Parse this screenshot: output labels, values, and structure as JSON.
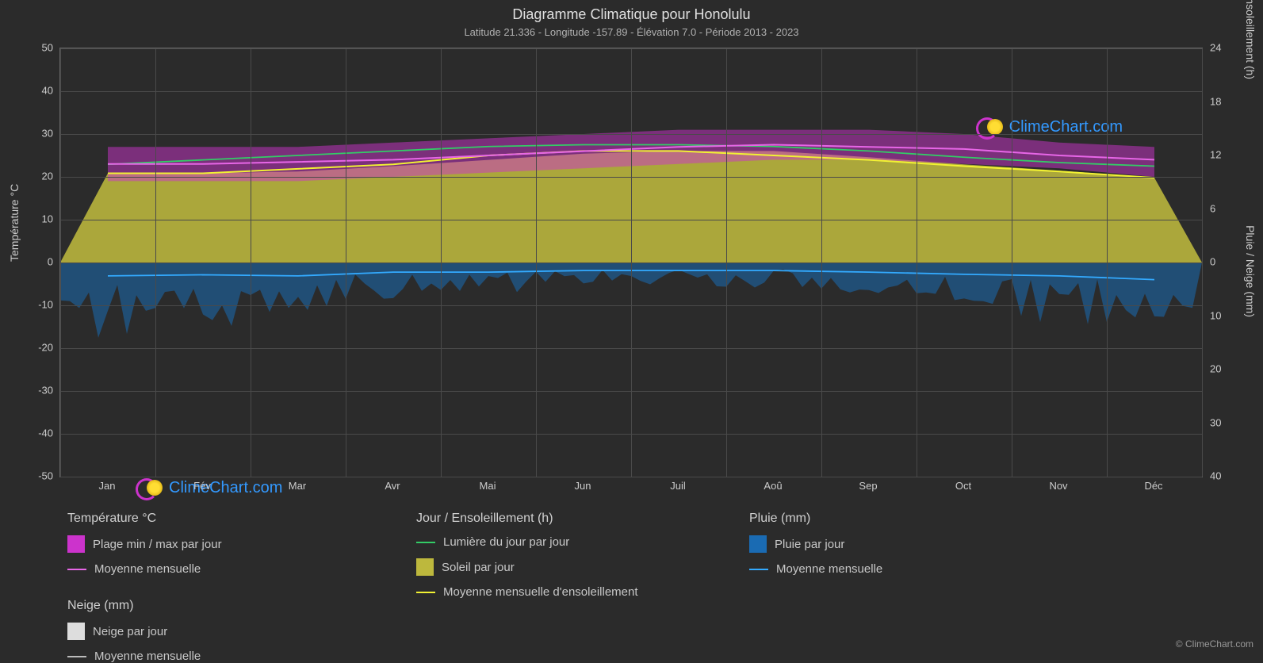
{
  "title": "Diagramme Climatique pour Honolulu",
  "subtitle": "Latitude 21.336 - Longitude -157.89 - Élévation 7.0 - Période 2013 - 2023",
  "copyright": "© ClimeChart.com",
  "watermark": "ClimeChart.com",
  "chart": {
    "type": "climate-composite",
    "background_color": "#2b2b2b",
    "grid_color": "#4a4a4a",
    "text_color": "#cccccc",
    "months": [
      "Jan",
      "Fév",
      "Mar",
      "Avr",
      "Mai",
      "Jun",
      "Juil",
      "Aoû",
      "Sep",
      "Oct",
      "Nov",
      "Déc"
    ],
    "y_left": {
      "label": "Température °C",
      "min": -50,
      "max": 50,
      "ticks": [
        50,
        40,
        30,
        20,
        10,
        0,
        -10,
        -20,
        -30,
        -40,
        -50
      ]
    },
    "y_right_top": {
      "label": "Jour / Ensoleillement (h)",
      "min": 0,
      "max": 24,
      "ticks": [
        24,
        18,
        12,
        6,
        0
      ]
    },
    "y_right_bottom": {
      "label": "Pluie / Neige (mm)",
      "min": 0,
      "max": 40,
      "ticks": [
        0,
        10,
        20,
        30,
        40
      ]
    },
    "temp_range_band": {
      "color": "#cc33cc",
      "opacity": 0.5,
      "monthly": [
        {
          "min": 19,
          "max": 27
        },
        {
          "min": 19,
          "max": 27
        },
        {
          "min": 19,
          "max": 27
        },
        {
          "min": 20,
          "max": 28
        },
        {
          "min": 21,
          "max": 29
        },
        {
          "min": 22,
          "max": 30
        },
        {
          "min": 23,
          "max": 31
        },
        {
          "min": 24,
          "max": 31
        },
        {
          "min": 24,
          "max": 31
        },
        {
          "min": 23,
          "max": 30
        },
        {
          "min": 22,
          "max": 28
        },
        {
          "min": 20,
          "max": 27
        }
      ]
    },
    "temp_mean_line": {
      "color": "#e766e7",
      "width": 2,
      "values": [
        23,
        23,
        23.5,
        24,
        25,
        26,
        27,
        27.5,
        27,
        26.5,
        25,
        24
      ]
    },
    "daylight_line": {
      "color": "#33cc66",
      "width": 1.8,
      "values_hours": [
        11,
        11.5,
        12,
        12.5,
        13,
        13.2,
        13.2,
        13,
        12.5,
        11.8,
        11.2,
        10.8
      ]
    },
    "sunshine_area": {
      "color": "#bdb83d",
      "opacity": 0.88,
      "values_hours": [
        10,
        10,
        10.2,
        10.8,
        11.5,
        12.2,
        12.5,
        12.5,
        11.8,
        11,
        10.3,
        9.5
      ]
    },
    "sunshine_mean_line": {
      "color": "#f2f233",
      "width": 2,
      "values_hours": [
        10,
        10,
        10.5,
        11,
        12,
        12.5,
        12.5,
        12,
        11.5,
        10.8,
        10.2,
        9.5
      ]
    },
    "rain_area": {
      "color": "#1a6bb3",
      "opacity": 0.55,
      "values_mm_max": [
        12,
        10,
        8,
        6,
        5,
        4,
        4,
        4,
        5,
        8,
        10,
        12
      ]
    },
    "rain_mean_line": {
      "color": "#33aaff",
      "width": 1.8,
      "values_mm": [
        2.5,
        2.3,
        2.5,
        1.8,
        1.8,
        1.5,
        1.5,
        1.5,
        1.8,
        2.2,
        2.5,
        3.2
      ]
    }
  },
  "legend": {
    "groups": [
      {
        "header": "Température °C",
        "items": [
          {
            "type": "box",
            "color": "#cc33cc",
            "label": "Plage min / max par jour"
          },
          {
            "type": "line",
            "color": "#e766e7",
            "label": "Moyenne mensuelle"
          }
        ]
      },
      {
        "header": "Jour / Ensoleillement (h)",
        "items": [
          {
            "type": "line",
            "color": "#33cc66",
            "label": "Lumière du jour par jour"
          },
          {
            "type": "box",
            "color": "#bdb83d",
            "label": "Soleil par jour"
          },
          {
            "type": "line",
            "color": "#f2f233",
            "label": "Moyenne mensuelle d'ensoleillement"
          }
        ]
      },
      {
        "header": "Pluie (mm)",
        "items": [
          {
            "type": "box",
            "color": "#1a6bb3",
            "label": "Pluie par jour"
          },
          {
            "type": "line",
            "color": "#33aaff",
            "label": "Moyenne mensuelle"
          }
        ]
      },
      {
        "header": "Neige (mm)",
        "items": [
          {
            "type": "box",
            "color": "#dddddd",
            "label": "Neige par jour"
          },
          {
            "type": "line",
            "color": "#bbbbbb",
            "label": "Moyenne mensuelle"
          }
        ]
      }
    ]
  }
}
